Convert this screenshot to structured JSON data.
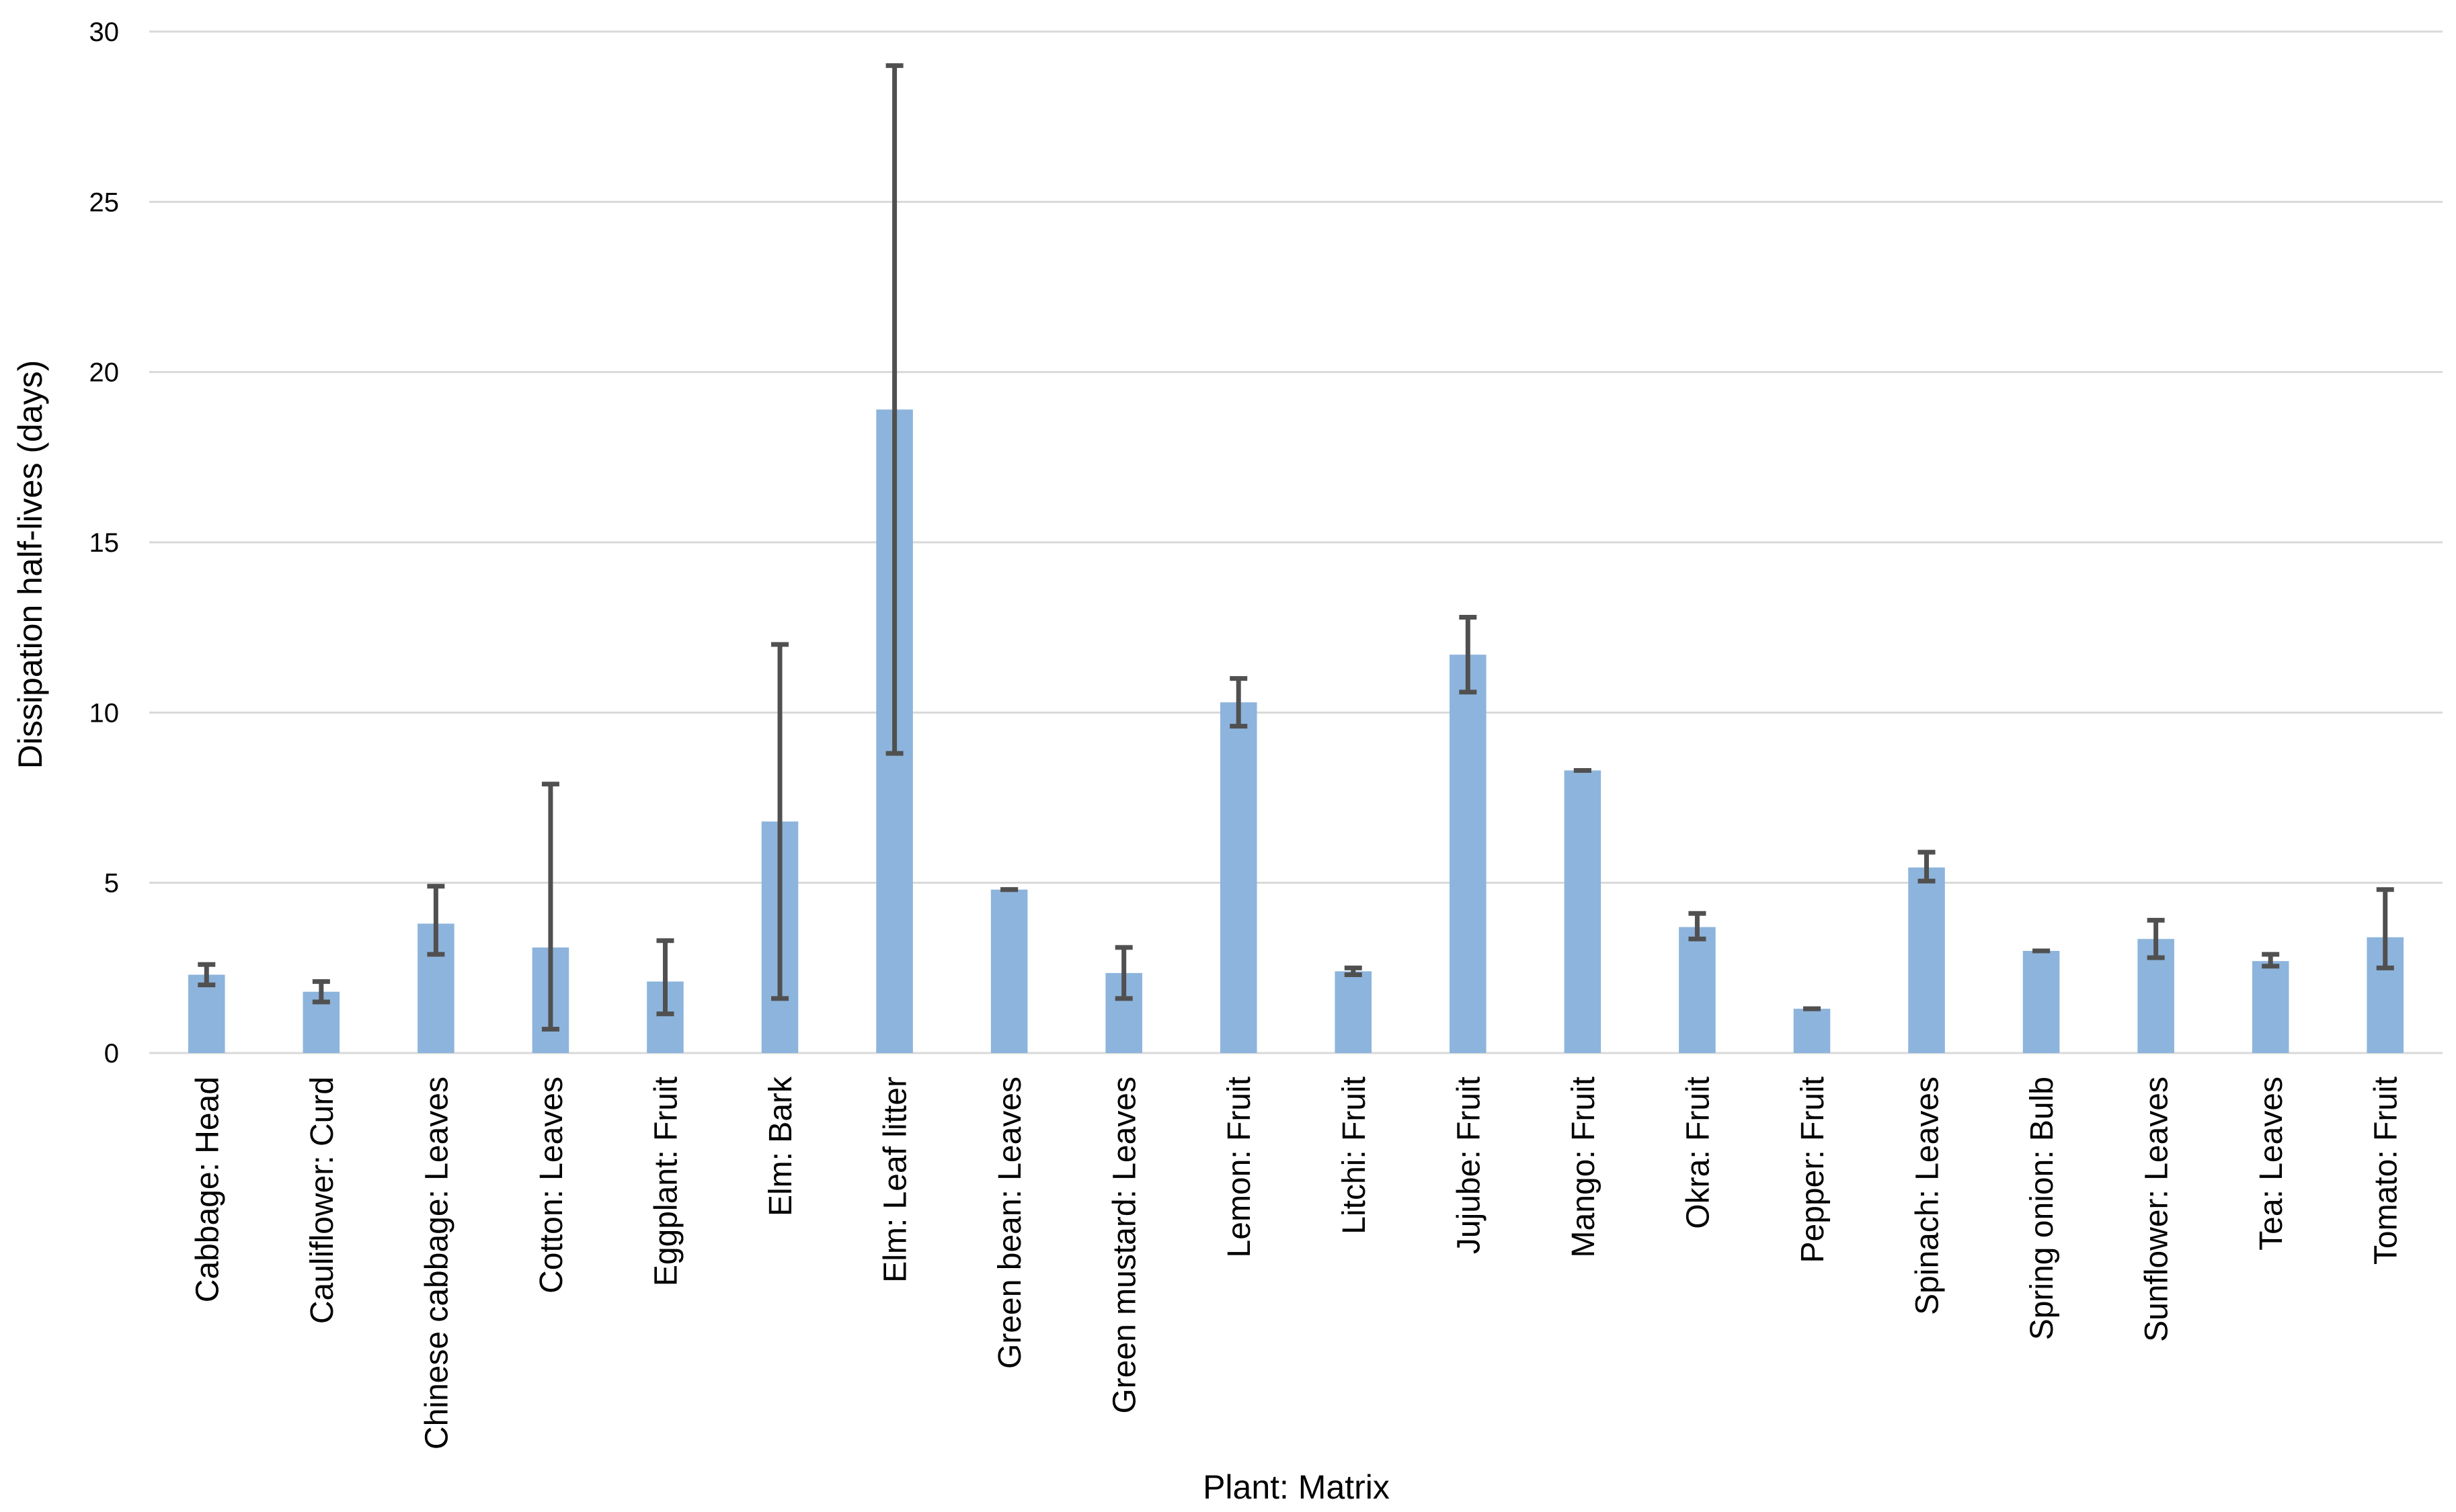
{
  "chart_data": {
    "type": "bar",
    "title": "",
    "xlabel": "Plant: Matrix",
    "ylabel": "Dissipation half-lives (days)",
    "ylim": [
      0,
      30
    ],
    "yticks": [
      0,
      5,
      10,
      15,
      20,
      25,
      30
    ],
    "grid": true,
    "legend": "none",
    "bar_color": "#8db4dc",
    "error_bar_color": "#505050",
    "gridline_color": "#d9d9d9",
    "categories": [
      "Cabbage: Head",
      "Cauliflower: Curd",
      "Chinese cabbage: Leaves",
      "Cotton: Leaves",
      "Eggplant: Fruit",
      "Elm: Bark",
      "Elm: Leaf litter",
      "Green bean: Leaves",
      "Green mustard: Leaves",
      "Lemon: Fruit",
      "Litchi: Fruit",
      "Jujube: Fruit",
      "Mango: Fruit",
      "Okra: Fruit",
      "Pepper: Fruit",
      "Spinach: Leaves",
      "Spring onion: Bulb",
      "Sunflower: Leaves",
      "Tea: Leaves",
      "Tomato: Fruit"
    ],
    "values": [
      2.3,
      1.8,
      3.8,
      3.1,
      2.1,
      6.8,
      18.9,
      4.8,
      2.35,
      10.3,
      2.4,
      11.7,
      8.3,
      3.7,
      1.3,
      5.45,
      3.0,
      3.35,
      2.7,
      3.4
    ],
    "error_low": [
      2.0,
      1.5,
      2.9,
      0.7,
      1.15,
      1.6,
      8.8,
      4.8,
      1.6,
      9.6,
      2.3,
      10.6,
      8.3,
      3.35,
      1.3,
      5.05,
      3.0,
      2.8,
      2.55,
      2.5
    ],
    "error_high": [
      2.6,
      2.1,
      4.9,
      7.9,
      3.3,
      12.0,
      29.0,
      4.8,
      3.1,
      11.0,
      2.5,
      12.8,
      8.3,
      4.1,
      1.3,
      5.9,
      3.0,
      3.9,
      2.9,
      4.8
    ]
  }
}
